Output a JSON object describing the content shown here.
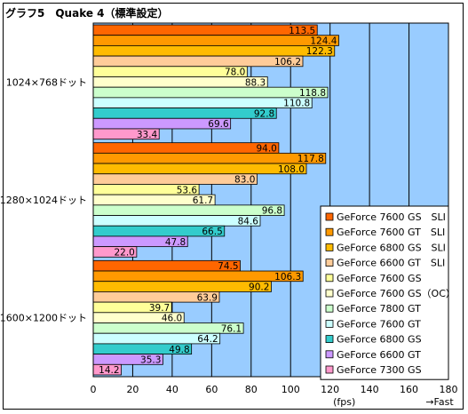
{
  "chart_data": {
    "type": "bar",
    "orientation": "horizontal",
    "title": "グラフ5　Quake 4（標準設定）",
    "categories": [
      "1024×768ドット",
      "1280×1024ドット",
      "1600×1200ドット"
    ],
    "series": [
      {
        "name": "GeForce 7600 GS　SLI",
        "color": "#ff6600",
        "values": [
          113.5,
          94.0,
          74.5
        ]
      },
      {
        "name": "GeForce 7600 GT　SLI",
        "color": "#ff9900",
        "values": [
          124.4,
          117.8,
          106.3
        ]
      },
      {
        "name": "GeForce 6800 GS　SLI",
        "color": "#ffbb00",
        "values": [
          122.3,
          108.0,
          90.2
        ]
      },
      {
        "name": "GeForce 6600 GT　SLI",
        "color": "#ffcc99",
        "values": [
          106.2,
          83.0,
          63.9
        ]
      },
      {
        "name": "GeForce 7600 GS",
        "color": "#ffff99",
        "values": [
          78.0,
          53.6,
          39.7
        ]
      },
      {
        "name": "GeForce 7600 GS（OC）",
        "color": "#ffffcc",
        "values": [
          88.3,
          61.7,
          46.0
        ]
      },
      {
        "name": "GeForce 7800 GT",
        "color": "#ccffcc",
        "values": [
          118.8,
          96.8,
          76.1
        ]
      },
      {
        "name": "GeForce 7600 GT",
        "color": "#ccffff",
        "values": [
          110.8,
          84.6,
          64.2
        ]
      },
      {
        "name": "GeForce 6800 GS",
        "color": "#33cccc",
        "values": [
          92.8,
          66.5,
          49.8
        ]
      },
      {
        "name": "GeForce 6600 GT",
        "color": "#cc99ff",
        "values": [
          69.6,
          47.8,
          35.3
        ]
      },
      {
        "name": "GeForce 7300 GS",
        "color": "#ff99cc",
        "values": [
          33.4,
          22.0,
          14.2
        ]
      }
    ],
    "xlim": [
      0,
      180
    ],
    "xticks": [
      0,
      20,
      40,
      60,
      80,
      100,
      120,
      140,
      160,
      180
    ],
    "xunit": "(fps)",
    "xnote": "→Fast",
    "plot_background": "#99ccff",
    "grid": true,
    "legend_position": "bottom-right"
  }
}
